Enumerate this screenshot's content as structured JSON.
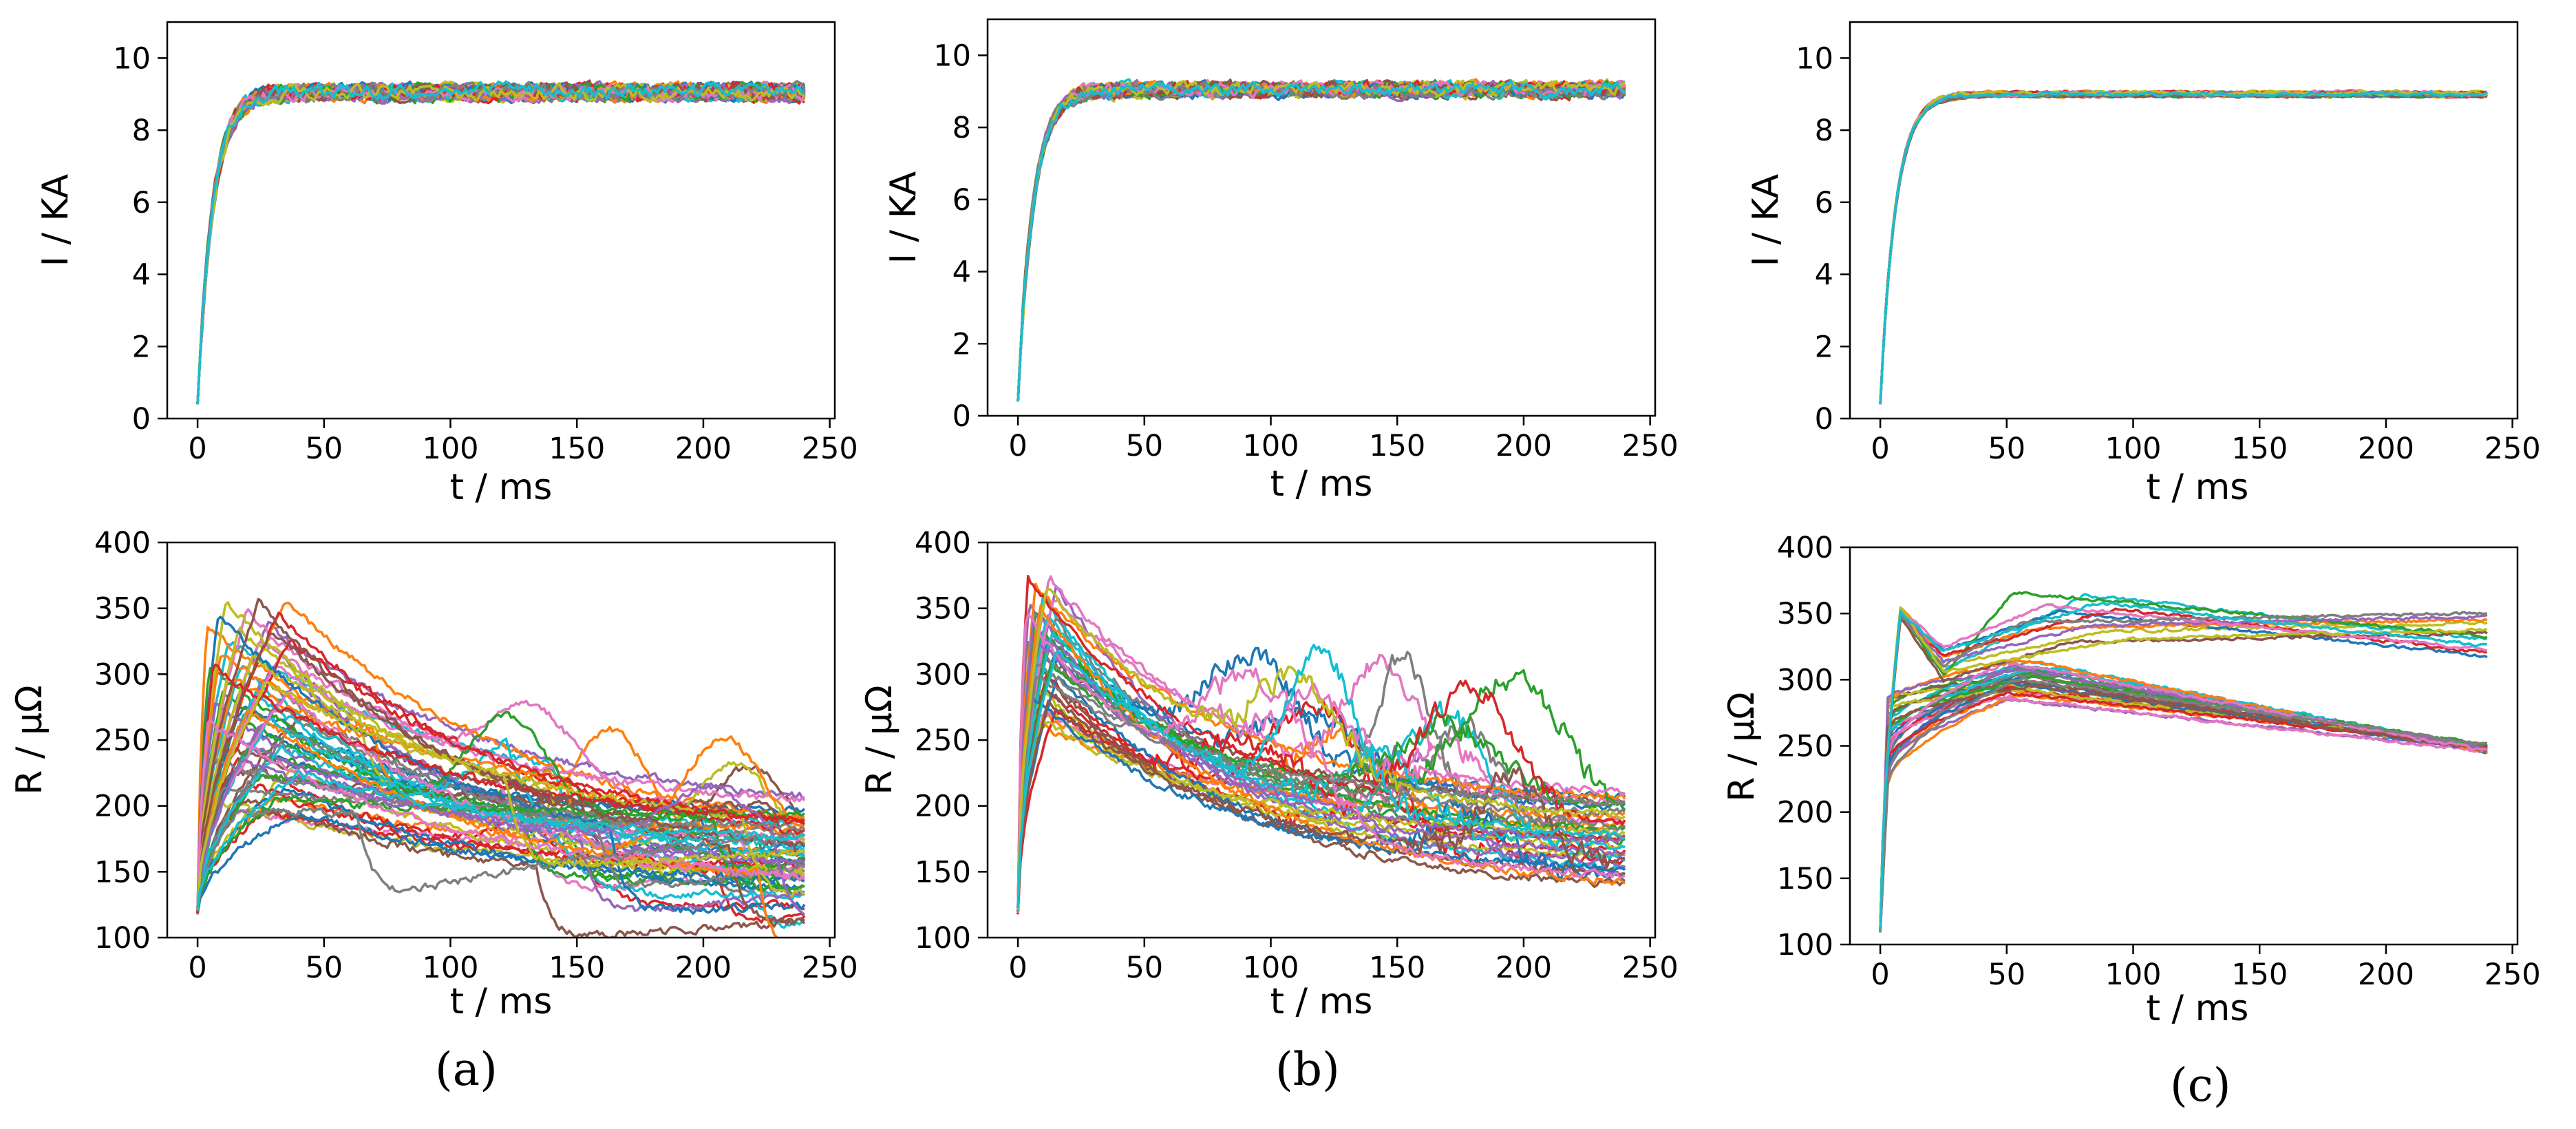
{
  "palette": [
    "#1f77b4",
    "#ff7f0e",
    "#2ca02c",
    "#d62728",
    "#9467bd",
    "#8c564b",
    "#e377c2",
    "#7f7f7f",
    "#bcbd22",
    "#17becf"
  ],
  "chart_data": [
    {
      "id": "a-current",
      "panel": "(a)",
      "type": "line",
      "title": "",
      "xlabel": "t / ms",
      "ylabel": "I / KA",
      "xlim": [
        -12,
        252
      ],
      "ylim": [
        0,
        11
      ],
      "xticks": [
        0,
        50,
        100,
        150,
        200,
        250
      ],
      "yticks": [
        0,
        2,
        4,
        6,
        8,
        10
      ],
      "series_count": 60,
      "legend": "none",
      "profile": {
        "t_end": 240,
        "start_value": 0.4,
        "plateau": 9.05,
        "rise_time_ms": 6,
        "noise_amplitude": 0.3
      }
    },
    {
      "id": "b-current",
      "panel": "(b)",
      "type": "line",
      "title": "",
      "xlabel": "t / ms",
      "ylabel": "I / KA",
      "xlim": [
        -12,
        252
      ],
      "ylim": [
        0,
        11
      ],
      "xticks": [
        0,
        50,
        100,
        150,
        200,
        250
      ],
      "yticks": [
        0,
        2,
        4,
        6,
        8,
        10
      ],
      "series_count": 40,
      "legend": "none",
      "profile": {
        "t_end": 240,
        "start_value": 0.4,
        "plateau": 9.05,
        "rise_time_ms": 6,
        "noise_amplitude": 0.28
      }
    },
    {
      "id": "c-current",
      "panel": "(c)",
      "type": "line",
      "title": "",
      "xlabel": "t / ms",
      "ylabel": "I / KA",
      "xlim": [
        -12,
        252
      ],
      "ylim": [
        0,
        11
      ],
      "xticks": [
        0,
        50,
        100,
        150,
        200,
        250
      ],
      "yticks": [
        0,
        2,
        4,
        6,
        8,
        10
      ],
      "series_count": 40,
      "legend": "none",
      "profile": {
        "t_end": 240,
        "start_value": 0.4,
        "plateau": 9.0,
        "rise_time_ms": 6,
        "noise_amplitude": 0.08
      }
    },
    {
      "id": "a-resistance",
      "panel": "(a)",
      "type": "line",
      "title": "",
      "xlabel": "t / ms",
      "ylabel": "R / μΩ",
      "xlim": [
        -12,
        252
      ],
      "ylim": [
        100,
        400
      ],
      "xticks": [
        0,
        50,
        100,
        150,
        200,
        250
      ],
      "yticks": [
        100,
        150,
        200,
        250,
        300,
        350,
        400
      ],
      "series_count": 60,
      "legend": "none",
      "profile": {
        "t_end": 240,
        "start_value": 120,
        "peak_range": [
          190,
          360
        ],
        "peak_time_range": [
          3,
          40
        ],
        "end_range": [
          125,
          200
        ],
        "collapse_fraction": 0.55,
        "collapse_drop": 70,
        "noise_amplitude": 5
      }
    },
    {
      "id": "b-resistance",
      "panel": "(b)",
      "type": "line",
      "title": "",
      "xlabel": "t / ms",
      "ylabel": "R / μΩ",
      "xlim": [
        -12,
        252
      ],
      "ylim": [
        100,
        400
      ],
      "xticks": [
        0,
        50,
        100,
        150,
        200,
        250
      ],
      "yticks": [
        100,
        150,
        200,
        250,
        300,
        350,
        400
      ],
      "series_count": 40,
      "legend": "none",
      "profile": {
        "t_end": 240,
        "start_value": 120,
        "peak_range": [
          260,
          375
        ],
        "peak_time_range": [
          3,
          16
        ],
        "end_range": [
          130,
          205
        ],
        "bump_fraction": 0.5,
        "bump_height_range": [
          40,
          220
        ],
        "bump_time_range": [
          90,
          200
        ],
        "noise_amplitude": 5
      }
    },
    {
      "id": "c-resistance",
      "panel": "(c)",
      "type": "line",
      "title": "",
      "xlabel": "t / ms",
      "ylabel": "R / μΩ",
      "xlim": [
        -12,
        252
      ],
      "ylim": [
        100,
        400
      ],
      "xticks": [
        0,
        50,
        100,
        150,
        200,
        250
      ],
      "yticks": [
        100,
        150,
        200,
        250,
        300,
        350,
        400
      ],
      "series_count": 40,
      "legend": "none",
      "profile": {
        "t_end": 240,
        "start_value": 110,
        "groups": [
          {
            "count": 28,
            "start_peak": 300,
            "peak_time": 55,
            "end_value": 248
          },
          {
            "count": 12,
            "start_peak": 350,
            "peak_time": 75,
            "peak_value": 368,
            "end_range": [
              315,
              355
            ]
          }
        ],
        "noise_amplitude": 2
      }
    }
  ],
  "captions": [
    "(a)",
    "(b)",
    "(c)"
  ]
}
